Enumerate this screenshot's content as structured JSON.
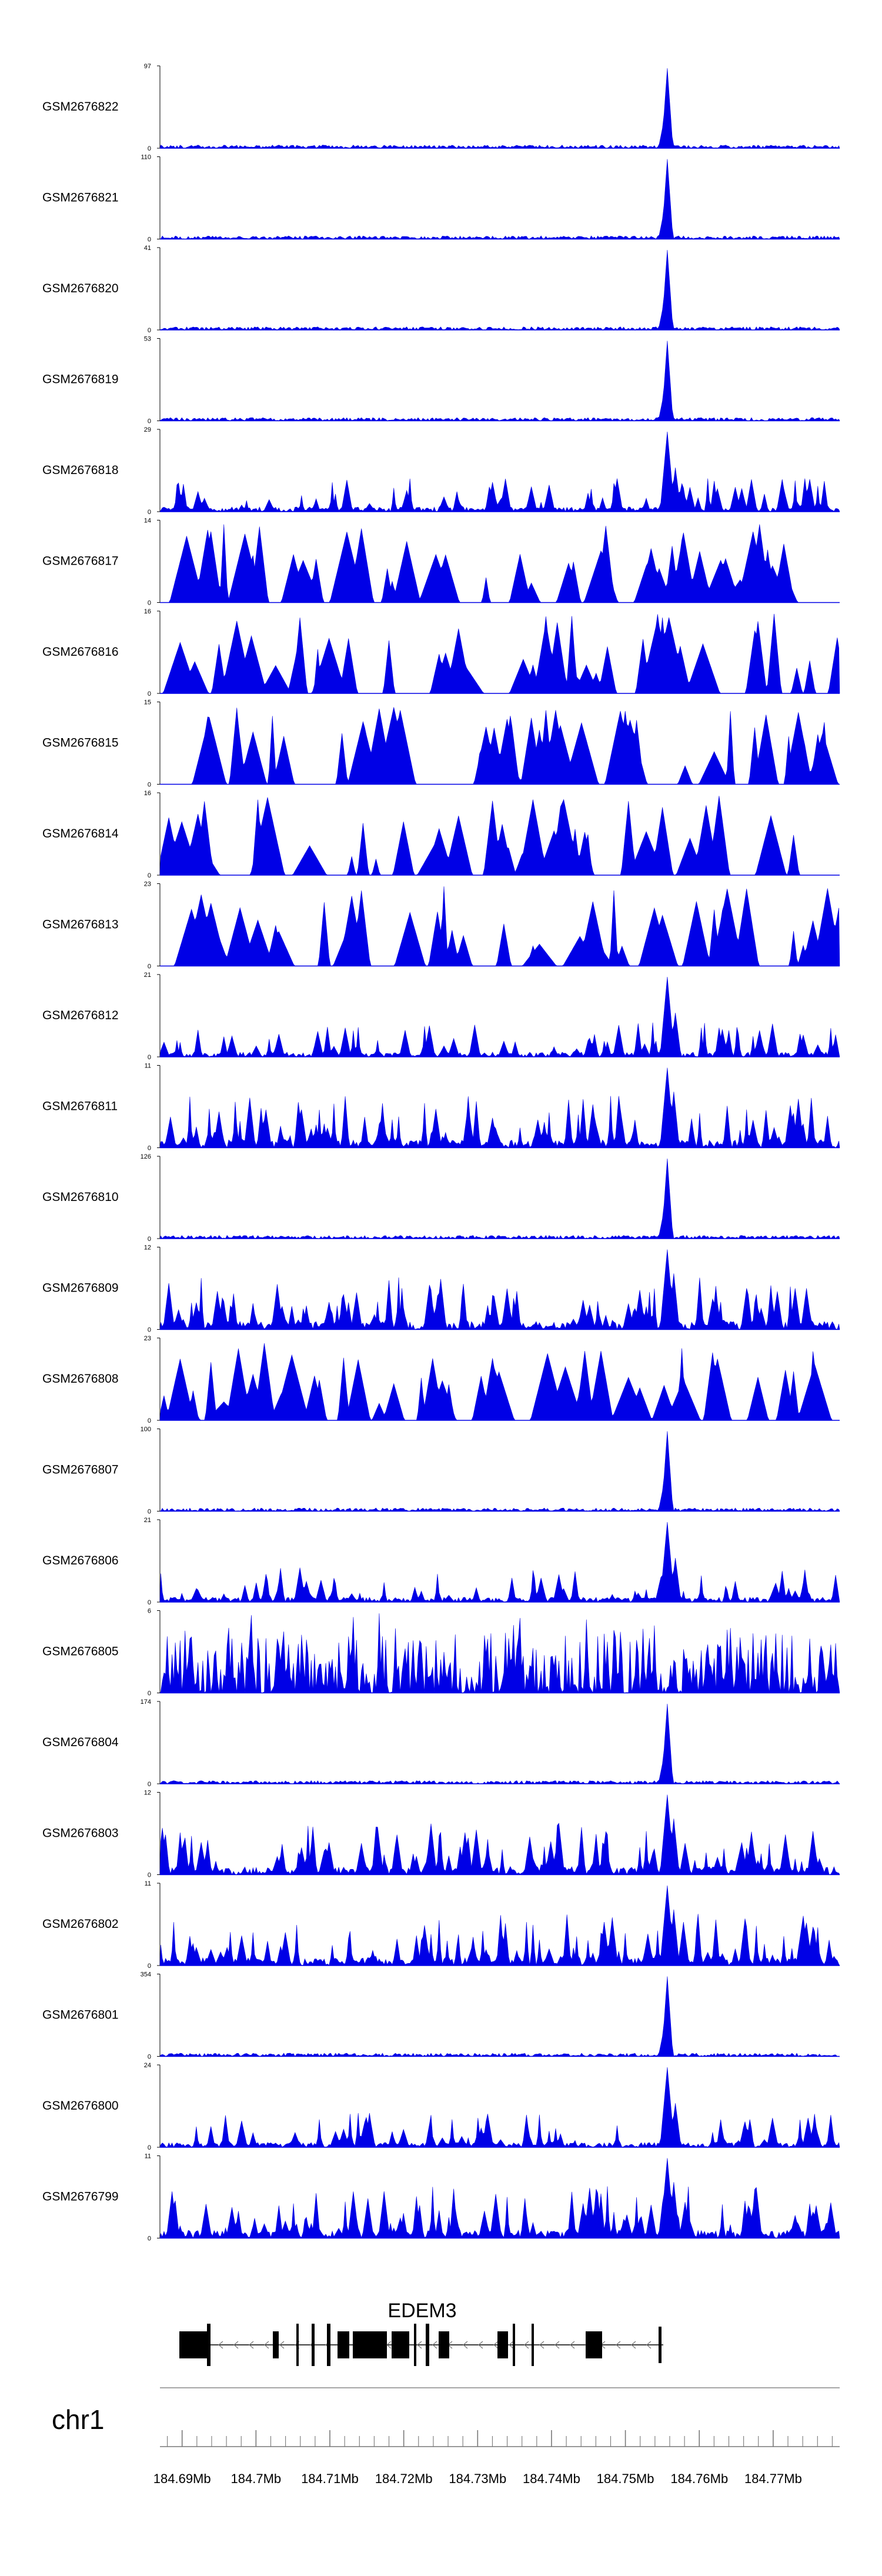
{
  "chart_data": {
    "type": "area",
    "region": {
      "chrom": "chr1",
      "start": 184687000,
      "end": 184779000
    },
    "track_color": "#0000e6",
    "gene": {
      "name": "EDEM3",
      "strand": "-"
    },
    "x_axis": {
      "ticks": [
        "184.69Mb",
        "184.7Mb",
        "184.71Mb",
        "184.72Mb",
        "184.73Mb",
        "184.74Mb",
        "184.75Mb",
        "184.76Mb",
        "184.77Mb"
      ],
      "tick_values": [
        184690000,
        184700000,
        184710000,
        184720000,
        184730000,
        184740000,
        184750000,
        184760000,
        184770000
      ]
    },
    "tracks": [
      {
        "name": "GSM2676822",
        "ymax": 97,
        "ymax_label": "97",
        "style": "peak",
        "seed": 11
      },
      {
        "name": "GSM2676821",
        "ymax": 110,
        "ymax_label": "110",
        "style": "peak",
        "seed": 12
      },
      {
        "name": "GSM2676820",
        "ymax": 41,
        "ymax_label": "41",
        "style": "peak",
        "seed": 13
      },
      {
        "name": "GSM2676819",
        "ymax": 53,
        "ymax_label": "53",
        "style": "peak",
        "seed": 14
      },
      {
        "name": "GSM2676818",
        "ymax": 29,
        "ymax_label": "29",
        "style": "mixed",
        "seed": 15
      },
      {
        "name": "GSM2676817",
        "ymax": 14,
        "ymax_label": "14",
        "style": "sparse",
        "seed": 16
      },
      {
        "name": "GSM2676816",
        "ymax": 16,
        "ymax_label": "16",
        "style": "sparse",
        "seed": 17
      },
      {
        "name": "GSM2676815",
        "ymax": 15,
        "ymax_label": "15",
        "style": "sparse",
        "seed": 18
      },
      {
        "name": "GSM2676814",
        "ymax": 16,
        "ymax_label": "16",
        "style": "sparse",
        "seed": 19
      },
      {
        "name": "GSM2676813",
        "ymax": 23,
        "ymax_label": "23",
        "style": "sparse",
        "seed": 20
      },
      {
        "name": "GSM2676812",
        "ymax": 21,
        "ymax_label": "21",
        "style": "mixed",
        "seed": 21
      },
      {
        "name": "GSM2676811",
        "ymax": 11,
        "ymax_label": "11",
        "style": "dense",
        "seed": 22
      },
      {
        "name": "GSM2676810",
        "ymax": 126,
        "ymax_label": "126",
        "style": "peak",
        "seed": 23
      },
      {
        "name": "GSM2676809",
        "ymax": 12,
        "ymax_label": "12",
        "style": "dense",
        "seed": 24
      },
      {
        "name": "GSM2676808",
        "ymax": 23,
        "ymax_label": "23",
        "style": "sparse",
        "seed": 25
      },
      {
        "name": "GSM2676807",
        "ymax": 100,
        "ymax_label": "100",
        "style": "peak",
        "seed": 26
      },
      {
        "name": "GSM2676806",
        "ymax": 21,
        "ymax_label": "21",
        "style": "mixed",
        "seed": 27
      },
      {
        "name": "GSM2676805",
        "ymax": 6,
        "ymax_label": "6",
        "style": "noisy",
        "seed": 28
      },
      {
        "name": "GSM2676804",
        "ymax": 174,
        "ymax_label": "174",
        "style": "peak",
        "seed": 29
      },
      {
        "name": "GSM2676803",
        "ymax": 12,
        "ymax_label": "12",
        "style": "dense",
        "seed": 30
      },
      {
        "name": "GSM2676802",
        "ymax": 11,
        "ymax_label": "11",
        "style": "dense",
        "seed": 31
      },
      {
        "name": "GSM2676801",
        "ymax": 354,
        "ymax_label": "354",
        "style": "peak",
        "seed": 32
      },
      {
        "name": "GSM2676800",
        "ymax": 24,
        "ymax_label": "24",
        "style": "mixed",
        "seed": 33
      },
      {
        "name": "GSM2676799",
        "ymax": 11,
        "ymax_label": "11",
        "style": "dense",
        "seed": 34
      }
    ],
    "y_min_label": "0"
  }
}
